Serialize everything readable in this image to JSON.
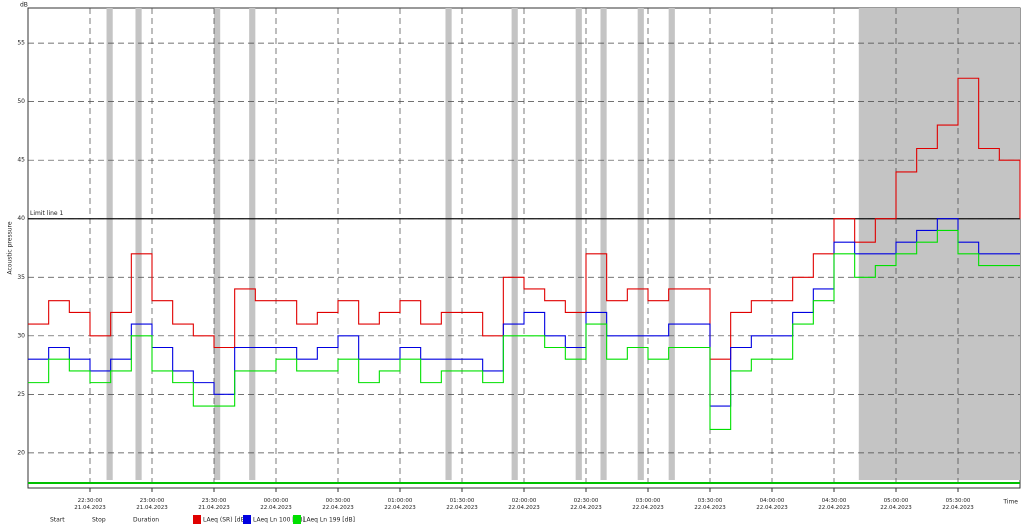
{
  "chart_data": {
    "type": "line",
    "y_unit": "dB",
    "ylabel": "Acoustic pressure",
    "xlabel": "Time",
    "x": [
      "2023-04-21T22:00",
      "2023-04-21T22:10",
      "2023-04-21T22:20",
      "2023-04-21T22:30",
      "2023-04-21T22:40",
      "2023-04-21T22:50",
      "2023-04-21T23:00",
      "2023-04-21T23:10",
      "2023-04-21T23:20",
      "2023-04-21T23:30",
      "2023-04-21T23:40",
      "2023-04-21T23:50",
      "2023-04-22T00:00",
      "2023-04-22T00:10",
      "2023-04-22T00:20",
      "2023-04-22T00:30",
      "2023-04-22T00:40",
      "2023-04-22T00:50",
      "2023-04-22T01:00",
      "2023-04-22T01:10",
      "2023-04-22T01:20",
      "2023-04-22T01:30",
      "2023-04-22T01:40",
      "2023-04-22T01:50",
      "2023-04-22T02:00",
      "2023-04-22T02:10",
      "2023-04-22T02:20",
      "2023-04-22T02:30",
      "2023-04-22T02:40",
      "2023-04-22T02:50",
      "2023-04-22T03:00",
      "2023-04-22T03:10",
      "2023-04-22T03:20",
      "2023-04-22T03:30",
      "2023-04-22T03:40",
      "2023-04-22T03:50",
      "2023-04-22T04:00",
      "2023-04-22T04:10",
      "2023-04-22T04:20",
      "2023-04-22T04:30",
      "2023-04-22T04:40",
      "2023-04-22T04:50",
      "2023-04-22T05:00",
      "2023-04-22T05:10",
      "2023-04-22T05:20",
      "2023-04-22T05:30",
      "2023-04-22T05:40",
      "2023-04-22T05:50",
      "2023-04-22T06:00"
    ],
    "series": [
      {
        "name": "LAeq (SR) [dB]",
        "color": "#e00000",
        "values": [
          31,
          33,
          32,
          30,
          32,
          37,
          33,
          31,
          30,
          29,
          34,
          33,
          33,
          31,
          32,
          33,
          31,
          32,
          33,
          31,
          32,
          32,
          30,
          35,
          34,
          33,
          32,
          37,
          33,
          34,
          33,
          34,
          34,
          28,
          32,
          33,
          33,
          35,
          37,
          40,
          38,
          40,
          44,
          46,
          48,
          52,
          46,
          45,
          40
        ]
      },
      {
        "name": "LAeq Ln 100 [dB]",
        "color": "#0000e0",
        "values": [
          28,
          29,
          28,
          27,
          28,
          31,
          29,
          27,
          26,
          25,
          29,
          29,
          29,
          28,
          29,
          30,
          28,
          28,
          29,
          28,
          28,
          28,
          27,
          31,
          32,
          30,
          29,
          32,
          30,
          30,
          30,
          31,
          31,
          24,
          29,
          30,
          30,
          32,
          34,
          38,
          37,
          37,
          38,
          39,
          40,
          38,
          37,
          37,
          37
        ]
      },
      {
        "name": "LAeq Ln 199 [dB]",
        "color": "#00e000",
        "values": [
          26,
          28,
          27,
          26,
          27,
          30,
          27,
          26,
          24,
          24,
          27,
          27,
          28,
          27,
          27,
          28,
          26,
          27,
          28,
          26,
          27,
          27,
          26,
          30,
          30,
          29,
          28,
          31,
          28,
          29,
          28,
          29,
          29,
          22,
          27,
          28,
          28,
          31,
          33,
          37,
          35,
          36,
          37,
          38,
          39,
          37,
          36,
          36,
          36
        ]
      }
    ],
    "xlim": [
      "2023-04-21T22:00",
      "2023-04-22T06:00"
    ],
    "xticks": [
      {
        "value": "2023-04-21T22:30",
        "label": "22:30:00\n21.04.2023"
      },
      {
        "value": "2023-04-21T23:00",
        "label": "23:00:00\n21.04.2023"
      },
      {
        "value": "2023-04-21T23:30",
        "label": "23:30:00\n21.04.2023"
      },
      {
        "value": "2023-04-22T00:00",
        "label": "00:00:00\n22.04.2023"
      },
      {
        "value": "2023-04-22T00:30",
        "label": "00:30:00\n22.04.2023"
      },
      {
        "value": "2023-04-22T01:00",
        "label": "01:00:00\n22.04.2023"
      },
      {
        "value": "2023-04-22T01:30",
        "label": "01:30:00\n22.04.2023"
      },
      {
        "value": "2023-04-22T02:00",
        "label": "02:00:00\n22.04.2023"
      },
      {
        "value": "2023-04-22T02:30",
        "label": "02:30:00\n22.04.2023"
      },
      {
        "value": "2023-04-22T03:00",
        "label": "03:00:00\n22.04.2023"
      },
      {
        "value": "2023-04-22T03:30",
        "label": "03:30:00\n22.04.2023"
      },
      {
        "value": "2023-04-22T04:00",
        "label": "04:00:00\n22.04.2023"
      },
      {
        "value": "2023-04-22T04:30",
        "label": "04:30:00\n22.04.2023"
      },
      {
        "value": "2023-04-22T05:00",
        "label": "05:00:00\n22.04.2023"
      },
      {
        "value": "2023-04-22T05:30",
        "label": "05:30:00\n22.04.2023"
      }
    ],
    "ylim": [
      17,
      58
    ],
    "yticks": [
      20,
      25,
      30,
      35,
      40,
      45,
      50,
      55
    ],
    "grid": true,
    "limit_line": {
      "value": 40,
      "label": "Limit line 1"
    },
    "highlight_intervals": [
      [
        "2023-04-21T22:38",
        "2023-04-21T22:41"
      ],
      [
        "2023-04-21T22:52",
        "2023-04-21T22:55"
      ],
      [
        "2023-04-21T23:30",
        "2023-04-21T23:33"
      ],
      [
        "2023-04-21T23:47",
        "2023-04-21T23:50"
      ],
      [
        "2023-04-22T01:22",
        "2023-04-22T01:25"
      ],
      [
        "2023-04-22T01:54",
        "2023-04-22T01:57"
      ],
      [
        "2023-04-22T02:25",
        "2023-04-22T02:28"
      ],
      [
        "2023-04-22T02:37",
        "2023-04-22T02:40"
      ],
      [
        "2023-04-22T02:55",
        "2023-04-22T02:58"
      ],
      [
        "2023-04-22T03:10",
        "2023-04-22T03:13"
      ],
      [
        "2023-04-22T04:42",
        "2023-04-22T06:00"
      ]
    ],
    "footer_labels": [
      "Start",
      "Stop",
      "Duration"
    ]
  }
}
